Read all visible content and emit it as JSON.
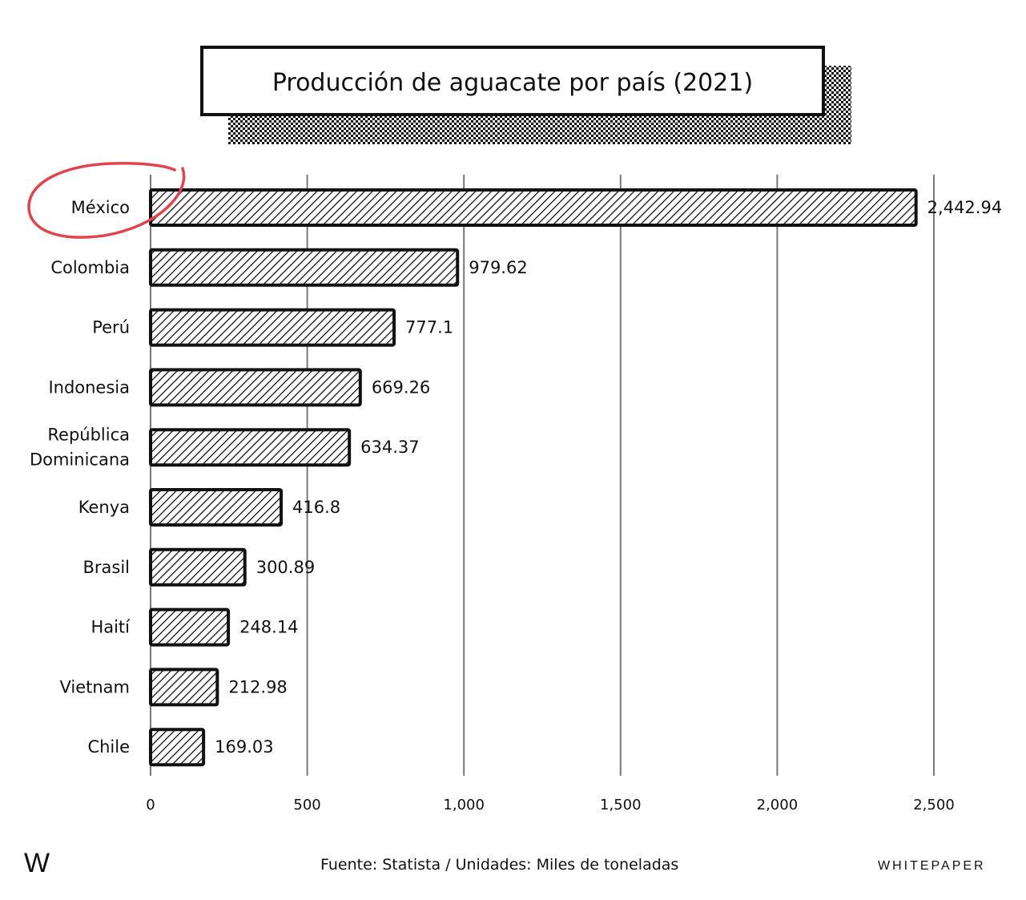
{
  "chart_data": {
    "type": "bar",
    "orientation": "horizontal",
    "title": "Producción de aguacate por país (2021)",
    "categories": [
      "México",
      "Colombia",
      "Perú",
      "Indonesia",
      "República Dominicana",
      "Kenya",
      "Brasil",
      "Haití",
      "Vietnam",
      "Chile"
    ],
    "category_lines": [
      [
        "México"
      ],
      [
        "Colombia"
      ],
      [
        "Perú"
      ],
      [
        "Indonesia"
      ],
      [
        "República",
        "Dominicana"
      ],
      [
        "Kenya"
      ],
      [
        "Brasil"
      ],
      [
        "Haití"
      ],
      [
        "Vietnam"
      ],
      [
        "Chile"
      ]
    ],
    "values": [
      2442.94,
      979.62,
      777.1,
      669.26,
      634.37,
      416.8,
      300.89,
      248.14,
      212.98,
      169.03
    ],
    "value_labels": [
      "2,442.94",
      "979.62",
      "777.1",
      "669.26",
      "634.37",
      "416.8",
      "300.89",
      "248.14",
      "212.98",
      "169.03"
    ],
    "xlim": [
      0,
      2500
    ],
    "xticks": [
      0,
      500,
      1000,
      1500,
      2000,
      2500
    ],
    "xtick_labels": [
      "0",
      "500",
      "1,000",
      "1,500",
      "2,000",
      "2,500"
    ],
    "grid": true,
    "highlight_category": "México",
    "highlight_color": "#e0454f",
    "bar_fill": "hatched",
    "ink_color": "#111111"
  },
  "footer": {
    "logo": "W",
    "source": "Fuente: Statista / Unidades: Miles de toneladas",
    "brand": "WHITEPAPER"
  }
}
